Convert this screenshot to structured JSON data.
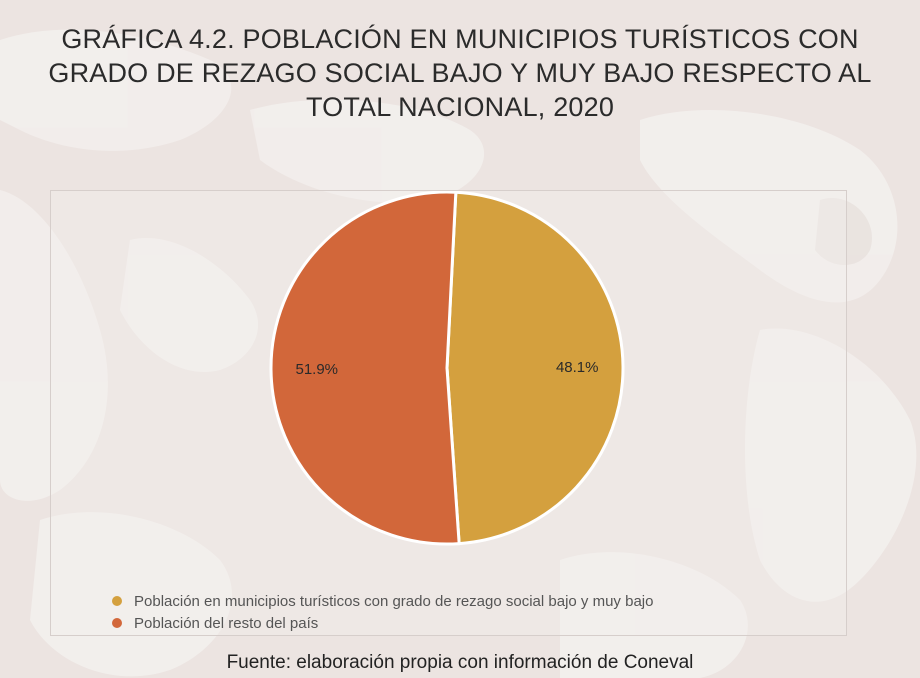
{
  "title": {
    "line1": "GRÁFICA 4.2. POBLACIÓN EN MUNICIPIOS TURÍSTICOS CON",
    "line2": "GRADO DE REZAGO SOCIAL BAJO Y MUY BAJO RESPECTO AL",
    "line3": "TOTAL NACIONAL, 2020"
  },
  "chart_data": {
    "type": "pie",
    "title": "GRÁFICA 4.2. POBLACIÓN EN MUNICIPIOS TURÍSTICOS CON GRADO DE REZAGO SOCIAL BAJO Y MUY BAJO RESPECTO AL TOTAL NACIONAL, 2020",
    "slices": [
      {
        "label": "Población en municipios turísticos con grado de rezago social bajo y muy bajo",
        "value": 48.1,
        "display": "48.1%",
        "color": "#d4a03e"
      },
      {
        "label": "Población del resto del país",
        "value": 51.9,
        "display": "51.9%",
        "color": "#d2673a"
      }
    ],
    "legend_position": "bottom-left"
  },
  "source": "Fuente: elaboración propia con información de Coneval"
}
